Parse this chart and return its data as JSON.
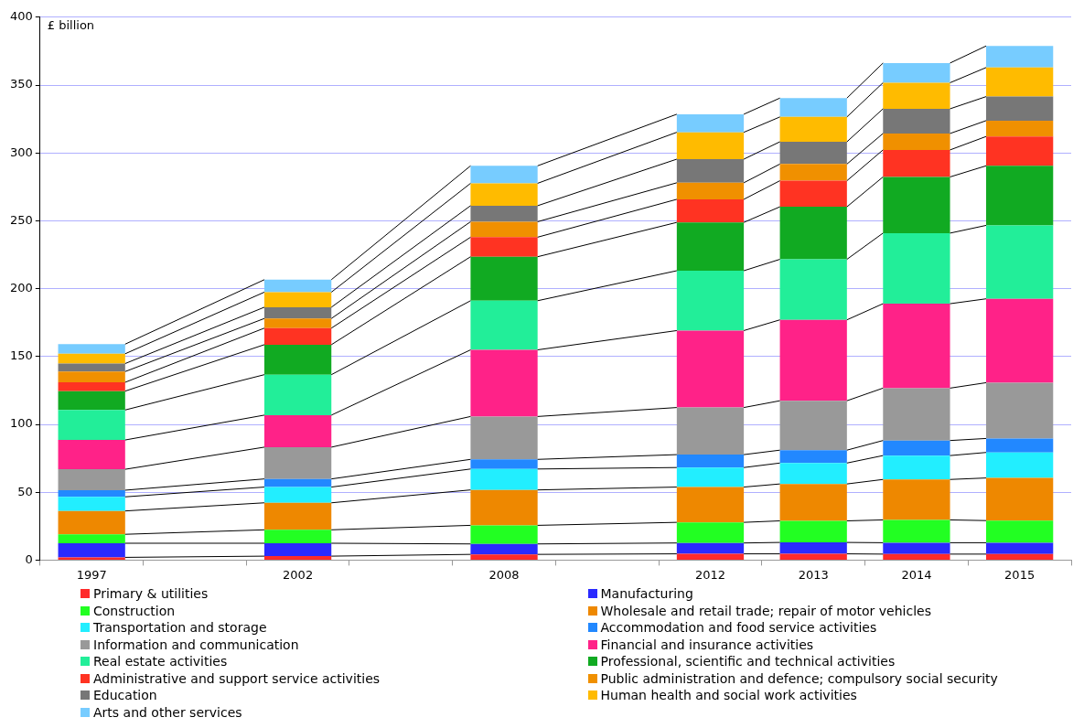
{
  "chart_data": {
    "type": "bar",
    "stacked": true,
    "ylabel": "£ billion",
    "categories": [
      "1997",
      null,
      "2002",
      null,
      "2008",
      null,
      "2012",
      "2013",
      "2014",
      "2015"
    ],
    "ylim": [
      0,
      400
    ],
    "yticks": [
      0,
      50,
      100,
      150,
      200,
      250,
      300,
      350,
      400
    ],
    "grid": "y",
    "legend": "bottom",
    "series": [
      {
        "name": "Primary & utilities",
        "color": "#ff2a2a",
        "values": [
          2.0,
          null,
          2.9,
          null,
          4.2,
          null,
          4.6,
          4.6,
          4.4,
          4.4
        ]
      },
      {
        "name": "Manufacturing",
        "color": "#2a2aff",
        "values": [
          10.4,
          null,
          9.5,
          null,
          7.7,
          null,
          8.0,
          8.4,
          8.4,
          8.4
        ]
      },
      {
        "name": "Construction",
        "color": "#22ff22",
        "values": [
          6.6,
          null,
          9.9,
          null,
          13.7,
          null,
          15.2,
          15.9,
          16.8,
          16.3
        ]
      },
      {
        "name": "Wholesale and retail trade; repair of motor vehicles",
        "color": "#ee8800",
        "values": [
          17.2,
          null,
          19.9,
          null,
          26.1,
          null,
          26.0,
          27.2,
          29.8,
          31.4
        ]
      },
      {
        "name": "Transportation and storage",
        "color": "#22eeff",
        "values": [
          10.4,
          null,
          11.6,
          null,
          15.4,
          null,
          14.4,
          15.4,
          17.6,
          18.8
        ]
      },
      {
        "name": "Accommodation and food service activities",
        "color": "#2288ff",
        "values": [
          4.9,
          null,
          6.0,
          null,
          7.1,
          null,
          9.5,
          9.5,
          11.1,
          10.3
        ]
      },
      {
        "name": "Information and communication",
        "color": "#999999",
        "values": [
          15.4,
          null,
          23.4,
          null,
          31.6,
          null,
          34.7,
          36.4,
          38.6,
          41.1
        ]
      },
      {
        "name": "Financial and insurance activities",
        "color": "#ff2288",
        "values": [
          21.6,
          null,
          23.6,
          null,
          49.1,
          null,
          56.7,
          59.6,
          62.2,
          61.8
        ]
      },
      {
        "name": "Real estate activities",
        "color": "#22ee99",
        "values": [
          22.1,
          null,
          29.8,
          null,
          36.2,
          null,
          44.1,
          44.6,
          52.0,
          54.1
        ]
      },
      {
        "name": "Professional, scientific and technical activities",
        "color": "#11aa22",
        "values": [
          13.9,
          null,
          22.1,
          null,
          32.4,
          null,
          35.6,
          38.7,
          41.4,
          43.9
        ]
      },
      {
        "name": "Administrative and support service activities",
        "color": "#ff3322",
        "values": [
          6.5,
          null,
          12.2,
          null,
          14.4,
          null,
          17.0,
          19.2,
          19.9,
          21.6
        ]
      },
      {
        "name": "Public administration and defence; compulsory social security",
        "color": "#f09000",
        "values": [
          7.9,
          null,
          7.1,
          null,
          11.4,
          null,
          12.2,
          12.3,
          12.1,
          11.7
        ]
      },
      {
        "name": "Education",
        "color": "#777777",
        "values": [
          5.9,
          null,
          8.3,
          null,
          11.8,
          null,
          17.4,
          16.4,
          18.2,
          17.7
        ]
      },
      {
        "name": "Human health and social work activities",
        "color": "#ffbb00",
        "values": [
          7.2,
          null,
          11.1,
          null,
          16.5,
          null,
          19.8,
          18.3,
          19.2,
          21.4
        ]
      },
      {
        "name": "Arts and other services",
        "color": "#77ccff",
        "values": [
          7.1,
          null,
          9.2,
          null,
          12.9,
          null,
          13.3,
          13.9,
          14.5,
          15.9
        ]
      }
    ]
  }
}
